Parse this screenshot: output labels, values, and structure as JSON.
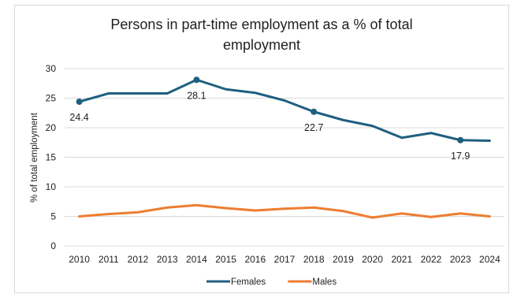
{
  "chart_data": {
    "type": "line",
    "title_lines": [
      "Persons in part-time employment as a % of total",
      "employment"
    ],
    "xlabel": "",
    "ylabel": "% of total employment",
    "categories": [
      "2010",
      "2011",
      "2012",
      "2013",
      "2014",
      "2015",
      "2016",
      "2017",
      "2018",
      "2019",
      "2020",
      "2021",
      "2022",
      "2023",
      "2024"
    ],
    "ylim": [
      0,
      30
    ],
    "yticks": [
      0,
      5,
      10,
      15,
      20,
      25,
      30
    ],
    "grid": "horizontal",
    "legend_position": "bottom",
    "series": [
      {
        "name": "Females",
        "color": "#1f5f7f",
        "values": [
          24.4,
          25.8,
          25.8,
          25.8,
          28.1,
          26.5,
          25.9,
          24.6,
          22.7,
          21.3,
          20.3,
          18.3,
          19.1,
          17.9,
          17.8
        ],
        "markers": [
          {
            "index": 0,
            "label": "24.4",
            "label_pos": "below"
          },
          {
            "index": 4,
            "label": "28.1",
            "label_pos": "below"
          },
          {
            "index": 8,
            "label": "22.7",
            "label_pos": "below"
          },
          {
            "index": 13,
            "label": "17.9",
            "label_pos": "below"
          }
        ]
      },
      {
        "name": "Males",
        "color": "#ed7d31",
        "values": [
          5.0,
          5.4,
          5.7,
          6.5,
          6.9,
          6.4,
          6.0,
          6.3,
          6.5,
          5.9,
          4.8,
          5.5,
          4.9,
          5.5,
          5.0
        ],
        "markers": []
      }
    ]
  }
}
